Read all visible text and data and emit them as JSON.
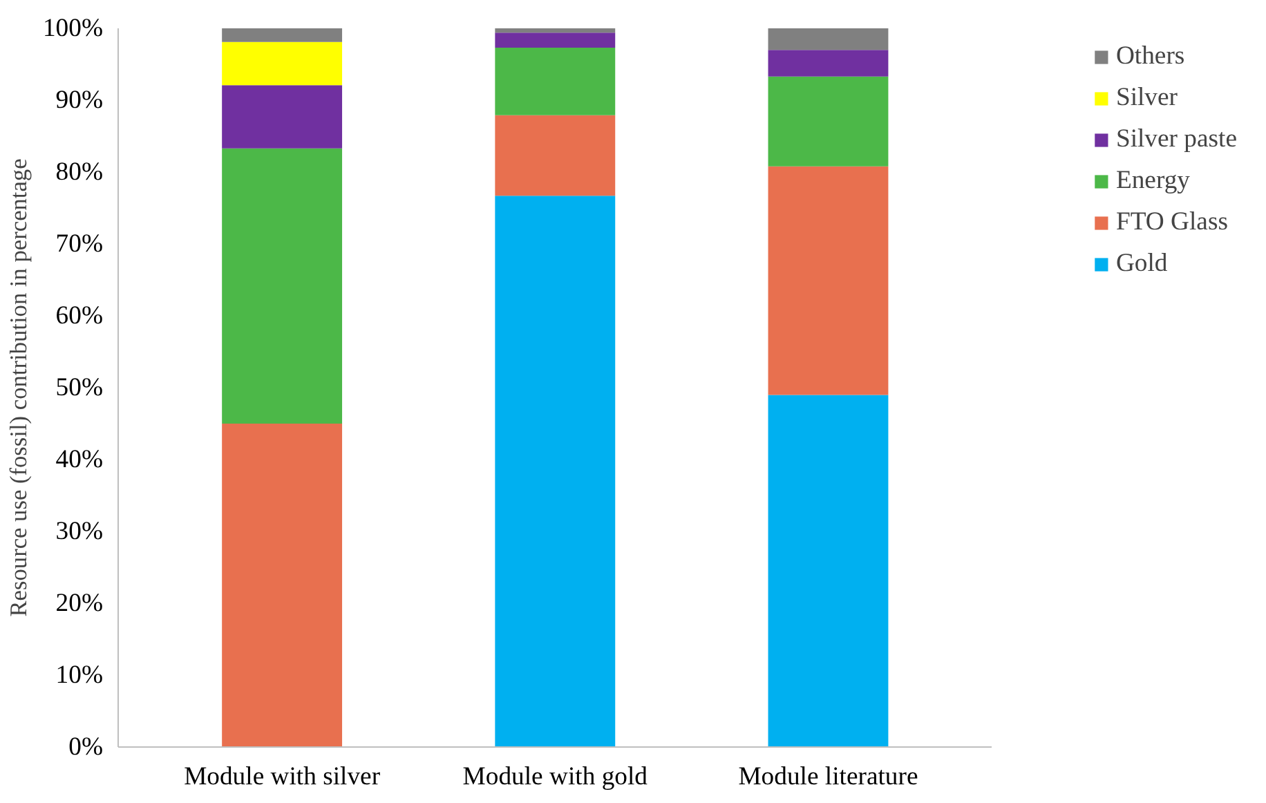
{
  "chart_data": {
    "type": "bar",
    "stacked": true,
    "ylabel": "Resource use (fossil) contribution in percentage",
    "categories": [
      "Module with silver",
      "Module with gold",
      "Module literature"
    ],
    "series": [
      {
        "name": "Gold",
        "color": "#00b0f0",
        "values": [
          0,
          76.7,
          49
        ]
      },
      {
        "name": "FTO Glass",
        "color": "#e8704f",
        "values": [
          45,
          11.2,
          31.8
        ]
      },
      {
        "name": "Energy",
        "color": "#4cb848",
        "values": [
          38.3,
          9.4,
          12.5
        ]
      },
      {
        "name": "Silver paste",
        "color": "#7030a0",
        "values": [
          8.8,
          2.1,
          3.7
        ]
      },
      {
        "name": "Silver",
        "color": "#ffff00",
        "values": [
          6,
          0,
          0
        ]
      },
      {
        "name": "Others",
        "color": "#808080",
        "values": [
          1.9,
          0.6,
          3
        ]
      }
    ],
    "ylim": [
      0,
      100
    ],
    "yticks": [
      {
        "value": 0,
        "label": "0%"
      },
      {
        "value": 10,
        "label": "10%"
      },
      {
        "value": 20,
        "label": "20%"
      },
      {
        "value": 30,
        "label": "30%"
      },
      {
        "value": 40,
        "label": "40%"
      },
      {
        "value": 50,
        "label": "50%"
      },
      {
        "value": 60,
        "label": "60%"
      },
      {
        "value": 70,
        "label": "70%"
      },
      {
        "value": 80,
        "label": "80%"
      },
      {
        "value": 90,
        "label": "90%"
      },
      {
        "value": 100,
        "label": "100%"
      }
    ],
    "grid": false,
    "legend": "right"
  }
}
